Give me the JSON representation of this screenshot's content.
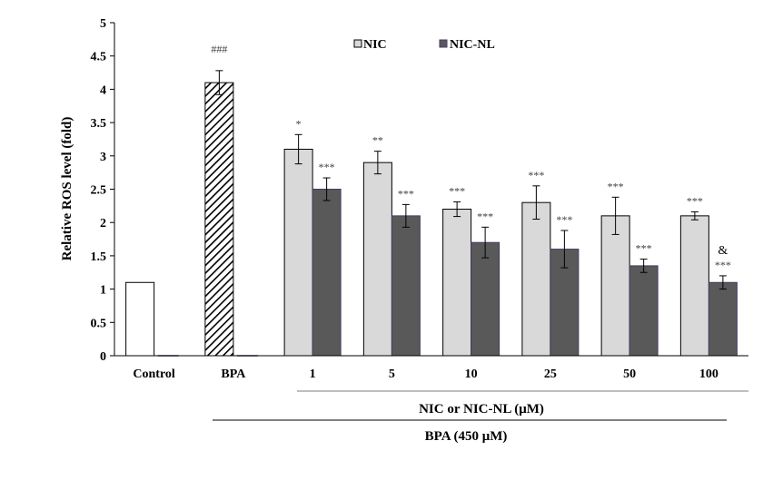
{
  "chart_data": {
    "type": "bar",
    "ylabel": "Relative ROS level (fold)",
    "ylim": [
      0,
      5
    ],
    "yticks": [
      "0",
      "0.5",
      "1",
      "1.5",
      "2",
      "2.5",
      "3",
      "3.5",
      "4",
      "4.5",
      "5"
    ],
    "categories": [
      "Control",
      "BPA",
      "1",
      "5",
      "10",
      "25",
      "50",
      "100"
    ],
    "series": [
      {
        "name": "NIC",
        "values": [
          null,
          null,
          3.1,
          2.9,
          2.2,
          2.3,
          2.1,
          2.1
        ],
        "errors": [
          null,
          null,
          0.22,
          0.17,
          0.11,
          0.25,
          0.28,
          0.06
        ],
        "annotations": [
          "",
          "",
          "*",
          "**",
          "***",
          "***",
          "***",
          "***"
        ]
      },
      {
        "name": "NIC-NL",
        "values": [
          null,
          null,
          2.5,
          2.1,
          1.7,
          1.6,
          1.35,
          1.1
        ],
        "errors": [
          null,
          null,
          0.17,
          0.17,
          0.23,
          0.28,
          0.1,
          0.1
        ],
        "annotations": [
          "",
          "",
          "***",
          "***",
          "***",
          "***",
          "***",
          "***"
        ],
        "annotations_top": [
          "",
          "",
          "",
          "",
          "",
          "",
          "",
          "&"
        ]
      }
    ],
    "control": {
      "value": 1.1,
      "second_value": 0.0
    },
    "bpa": {
      "value": 4.1,
      "error": 0.18,
      "annotation": "###",
      "second_value": 0.0
    },
    "legend": {
      "position": "top-center",
      "items": [
        "NIC",
        "NIC-NL"
      ]
    },
    "group_labels": {
      "concentration": "NIC or NIC-NL (μM)",
      "treatment": "BPA (450 μM)"
    },
    "colors": {
      "control": "#ffffff",
      "nic": "#d9d9d9",
      "nicnl": "#595959",
      "bar_edge": "#000000",
      "nicnl_edge": "#4b3a63",
      "axis": "#000000",
      "bracket": "#7f7f7f",
      "annotation": "#404040"
    }
  }
}
